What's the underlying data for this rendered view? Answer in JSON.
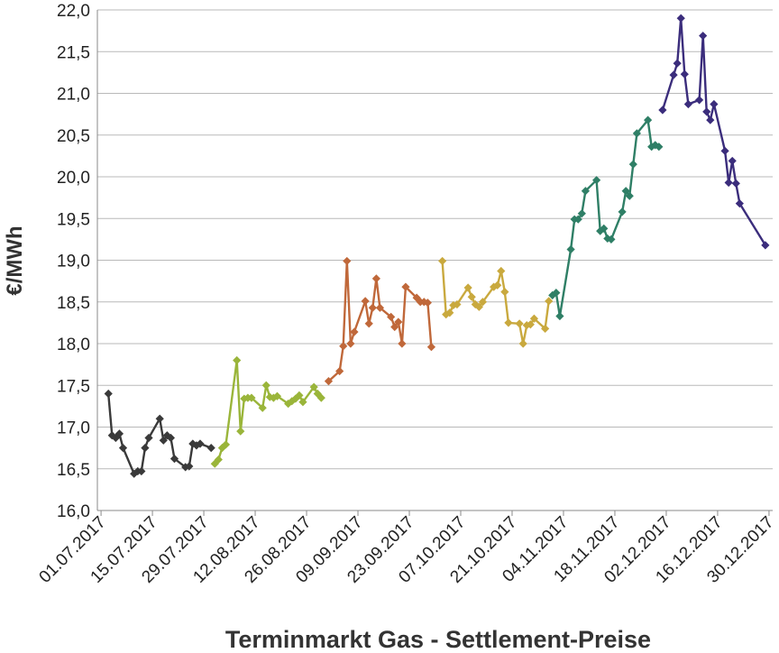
{
  "chart_data": {
    "type": "line",
    "xlabel": "Terminmarkt Gas - Settlement-Preise",
    "ylabel": "€/MWh",
    "ylim": [
      16.0,
      22.0
    ],
    "yticks": [
      "16,0",
      "16,5",
      "17,0",
      "17,5",
      "18,0",
      "18,5",
      "19,0",
      "19,5",
      "20,0",
      "20,5",
      "21,0",
      "21,5",
      "22,0"
    ],
    "xlim": [
      "2017-06-30",
      "2017-12-31"
    ],
    "xticks": [
      {
        "date": "2017-07-01",
        "label": "01.07.2017"
      },
      {
        "date": "2017-07-15",
        "label": "15.07.2017"
      },
      {
        "date": "2017-07-29",
        "label": "29.07.2017"
      },
      {
        "date": "2017-08-12",
        "label": "12.08.2017"
      },
      {
        "date": "2017-08-26",
        "label": "26.08.2017"
      },
      {
        "date": "2017-09-09",
        "label": "09.09.2017"
      },
      {
        "date": "2017-09-23",
        "label": "23.09.2017"
      },
      {
        "date": "2017-10-07",
        "label": "07.10.2017"
      },
      {
        "date": "2017-10-21",
        "label": "21.10.2017"
      },
      {
        "date": "2017-11-04",
        "label": "04.11.2017"
      },
      {
        "date": "2017-11-18",
        "label": "18.11.2017"
      },
      {
        "date": "2017-12-02",
        "label": "02.12.2017"
      },
      {
        "date": "2017-12-16",
        "label": "16.12.2017"
      },
      {
        "date": "2017-12-30",
        "label": "30.12.2017"
      }
    ],
    "grid": true,
    "legend": "none",
    "series": [
      {
        "color": "#3a3a3a",
        "points": [
          [
            "2017-07-03",
            17.4
          ],
          [
            "2017-07-04",
            16.9
          ],
          [
            "2017-07-05",
            16.87
          ],
          [
            "2017-07-06",
            16.92
          ],
          [
            "2017-07-07",
            16.75
          ],
          [
            "2017-07-10",
            16.44
          ],
          [
            "2017-07-11",
            16.47
          ],
          [
            "2017-07-12",
            16.47
          ],
          [
            "2017-07-13",
            16.75
          ],
          [
            "2017-07-14",
            16.87
          ],
          [
            "2017-07-17",
            17.1
          ],
          [
            "2017-07-18",
            16.84
          ],
          [
            "2017-07-19",
            16.9
          ],
          [
            "2017-07-20",
            16.87
          ],
          [
            "2017-07-21",
            16.62
          ],
          [
            "2017-07-24",
            16.52
          ],
          [
            "2017-07-25",
            16.53
          ],
          [
            "2017-07-26",
            16.8
          ],
          [
            "2017-07-27",
            16.78
          ],
          [
            "2017-07-28",
            16.8
          ],
          [
            "2017-07-31",
            16.75
          ]
        ]
      },
      {
        "color": "#9ab53a",
        "points": [
          [
            "2017-08-01",
            16.56
          ],
          [
            "2017-08-02",
            16.61
          ],
          [
            "2017-08-03",
            16.75
          ],
          [
            "2017-08-04",
            16.79
          ],
          [
            "2017-08-07",
            17.8
          ],
          [
            "2017-08-08",
            16.95
          ],
          [
            "2017-08-09",
            17.34
          ],
          [
            "2017-08-10",
            17.35
          ],
          [
            "2017-08-11",
            17.35
          ],
          [
            "2017-08-14",
            17.23
          ],
          [
            "2017-08-15",
            17.5
          ],
          [
            "2017-08-16",
            17.36
          ],
          [
            "2017-08-17",
            17.35
          ],
          [
            "2017-08-18",
            17.37
          ],
          [
            "2017-08-21",
            17.28
          ],
          [
            "2017-08-22",
            17.31
          ],
          [
            "2017-08-23",
            17.34
          ],
          [
            "2017-08-24",
            17.38
          ],
          [
            "2017-08-25",
            17.3
          ],
          [
            "2017-08-28",
            17.48
          ],
          [
            "2017-08-29",
            17.4
          ],
          [
            "2017-08-30",
            17.35
          ]
        ]
      },
      {
        "color": "#c0683a",
        "points": [
          [
            "2017-09-01",
            17.55
          ],
          [
            "2017-09-04",
            17.67
          ],
          [
            "2017-09-05",
            17.97
          ],
          [
            "2017-09-06",
            18.99
          ],
          [
            "2017-09-07",
            18.0
          ],
          [
            "2017-09-08",
            18.14
          ],
          [
            "2017-09-11",
            18.51
          ],
          [
            "2017-09-12",
            18.24
          ],
          [
            "2017-09-13",
            18.43
          ],
          [
            "2017-09-14",
            18.78
          ],
          [
            "2017-09-15",
            18.43
          ],
          [
            "2017-09-18",
            18.32
          ],
          [
            "2017-09-19",
            18.2
          ],
          [
            "2017-09-20",
            18.26
          ],
          [
            "2017-09-21",
            18.0
          ],
          [
            "2017-09-22",
            18.68
          ],
          [
            "2017-09-25",
            18.55
          ],
          [
            "2017-09-26",
            18.5
          ],
          [
            "2017-09-27",
            18.5
          ],
          [
            "2017-09-28",
            18.49
          ],
          [
            "2017-09-29",
            17.96
          ]
        ]
      },
      {
        "color": "#c9a93e",
        "points": [
          [
            "2017-10-02",
            18.99
          ],
          [
            "2017-10-03",
            18.35
          ],
          [
            "2017-10-04",
            18.37
          ],
          [
            "2017-10-05",
            18.46
          ],
          [
            "2017-10-06",
            18.47
          ],
          [
            "2017-10-09",
            18.67
          ],
          [
            "2017-10-10",
            18.56
          ],
          [
            "2017-10-11",
            18.47
          ],
          [
            "2017-10-12",
            18.44
          ],
          [
            "2017-10-13",
            18.5
          ],
          [
            "2017-10-16",
            18.68
          ],
          [
            "2017-10-17",
            18.7
          ],
          [
            "2017-10-18",
            18.87
          ],
          [
            "2017-10-19",
            18.62
          ],
          [
            "2017-10-20",
            18.25
          ],
          [
            "2017-10-23",
            18.24
          ],
          [
            "2017-10-24",
            18.0
          ],
          [
            "2017-10-25",
            18.22
          ],
          [
            "2017-10-26",
            18.23
          ],
          [
            "2017-10-27",
            18.3
          ],
          [
            "2017-10-30",
            18.18
          ],
          [
            "2017-10-31",
            18.51
          ]
        ]
      },
      {
        "color": "#2f7f66",
        "points": [
          [
            "2017-11-01",
            18.58
          ],
          [
            "2017-11-02",
            18.61
          ],
          [
            "2017-11-03",
            18.33
          ],
          [
            "2017-11-06",
            19.13
          ],
          [
            "2017-11-07",
            19.49
          ],
          [
            "2017-11-08",
            19.49
          ],
          [
            "2017-11-09",
            19.56
          ],
          [
            "2017-11-10",
            19.83
          ],
          [
            "2017-11-13",
            19.96
          ],
          [
            "2017-11-14",
            19.35
          ],
          [
            "2017-11-15",
            19.38
          ],
          [
            "2017-11-16",
            19.26
          ],
          [
            "2017-11-17",
            19.25
          ],
          [
            "2017-11-20",
            19.58
          ],
          [
            "2017-11-21",
            19.83
          ],
          [
            "2017-11-22",
            19.77
          ],
          [
            "2017-11-23",
            20.15
          ],
          [
            "2017-11-24",
            20.52
          ],
          [
            "2017-11-27",
            20.68
          ],
          [
            "2017-11-28",
            20.36
          ],
          [
            "2017-11-29",
            20.38
          ],
          [
            "2017-11-30",
            20.36
          ]
        ]
      },
      {
        "color": "#3b2d7c",
        "points": [
          [
            "2017-12-01",
            20.8
          ],
          [
            "2017-12-04",
            21.22
          ],
          [
            "2017-12-05",
            21.36
          ],
          [
            "2017-12-06",
            21.9
          ],
          [
            "2017-12-07",
            21.23
          ],
          [
            "2017-12-08",
            20.87
          ],
          [
            "2017-12-11",
            20.92
          ],
          [
            "2017-12-12",
            21.69
          ],
          [
            "2017-12-13",
            20.78
          ],
          [
            "2017-12-14",
            20.68
          ],
          [
            "2017-12-15",
            20.87
          ],
          [
            "2017-12-18",
            20.31
          ],
          [
            "2017-12-19",
            19.93
          ],
          [
            "2017-12-20",
            20.19
          ],
          [
            "2017-12-21",
            19.92
          ],
          [
            "2017-12-22",
            19.68
          ],
          [
            "2017-12-29",
            19.18
          ]
        ]
      }
    ]
  }
}
